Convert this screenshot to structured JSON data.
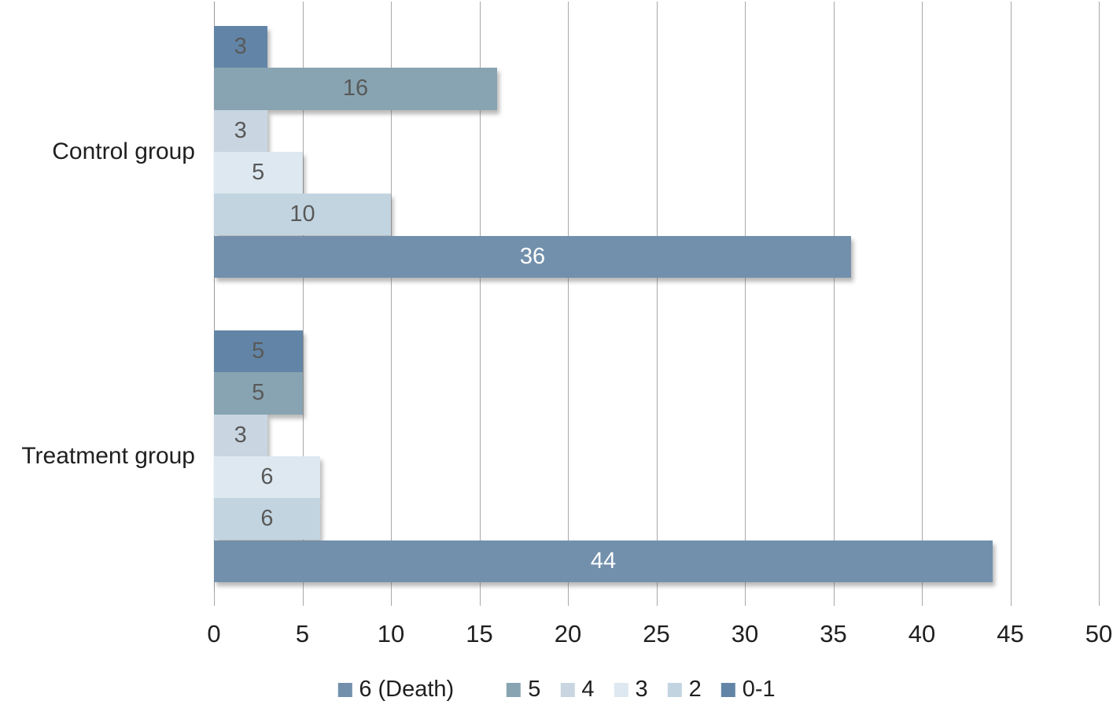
{
  "chart_data": {
    "type": "bar",
    "orientation": "horizontal",
    "categories": [
      "Control group",
      "Treatment group"
    ],
    "series": [
      {
        "name": "0-1",
        "color": "#6285a7",
        "label_color": "#595959",
        "values": [
          3,
          5
        ]
      },
      {
        "name": "5",
        "color": "#88a4b2",
        "label_color": "#595959",
        "values": [
          16,
          5
        ]
      },
      {
        "name": "4",
        "color": "#c9d6e2",
        "label_color": "#595959",
        "values": [
          3,
          3
        ]
      },
      {
        "name": "3",
        "color": "#dee8f0",
        "label_color": "#595959",
        "values": [
          5,
          6
        ]
      },
      {
        "name": "2",
        "color": "#c3d4e1",
        "label_color": "#595959",
        "values": [
          10,
          6
        ]
      },
      {
        "name": "6 (Death)",
        "color": "#7290ac",
        "label_color": "#ffffff",
        "values": [
          36,
          44
        ]
      }
    ],
    "legend": [
      {
        "label": "6 (Death)",
        "color": "#7290ac"
      },
      {
        "label": "5",
        "color": "#88a4b2"
      },
      {
        "label": "4",
        "color": "#c9d6e2"
      },
      {
        "label": "3",
        "color": "#dee8f0"
      },
      {
        "label": "2",
        "color": "#c3d4e1"
      },
      {
        "label": "0-1",
        "color": "#6285a7"
      }
    ],
    "xlim": [
      0,
      50
    ],
    "x_ticks": [
      0,
      5,
      10,
      15,
      20,
      25,
      30,
      35,
      40,
      45,
      50
    ],
    "grid": true,
    "grid_color": "#a8a8a8",
    "legend_position": "bottom",
    "value_labels": "center"
  }
}
